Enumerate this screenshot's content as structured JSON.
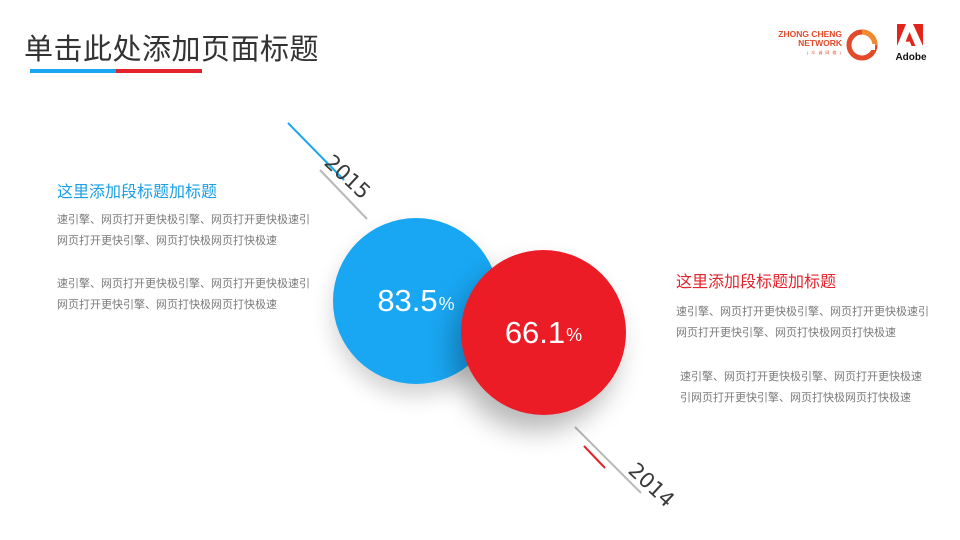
{
  "header": {
    "title": "单击此处添加页面标题",
    "accent_colors": [
      "#19a6f2",
      "#e2232c"
    ]
  },
  "logos": {
    "zhongcheng": {
      "line1": "ZHONG CHENG",
      "line2": "NETWORK",
      "sub": "( 众 诚 网 络 )",
      "icon": "zhongcheng-logo-icon"
    },
    "adobe": {
      "label": "Adobe",
      "icon": "adobe-logo-icon"
    }
  },
  "years": {
    "top": "2015",
    "bottom": "2014"
  },
  "circles": {
    "blue": {
      "value": "83.5",
      "unit": "%",
      "color": "#19a6f2"
    },
    "red": {
      "value": "66.1",
      "unit": "%",
      "color": "#ec1c26"
    }
  },
  "left_block": {
    "title": "这里添加段标题加标题",
    "paragraph1": "速引擎、网页打开更快极引擎、网页打开更快极速引网页打开更快引擎、网页打快极网页打快极速",
    "paragraph2": "速引擎、网页打开更快极引擎、网页打开更快极速引网页打开更快引擎、网页打快极网页打快极速"
  },
  "right_block": {
    "title": "这里添加段标题加标题",
    "paragraph1": "速引擎、网页打开更快极引擎、网页打开更快极速引网页打开更快引擎、网页打快极网页打快极速",
    "paragraph2": "速引擎、网页打开更快极引擎、网页打开更快极速引网页打开更快引擎、网页打快极网页打快极速"
  }
}
